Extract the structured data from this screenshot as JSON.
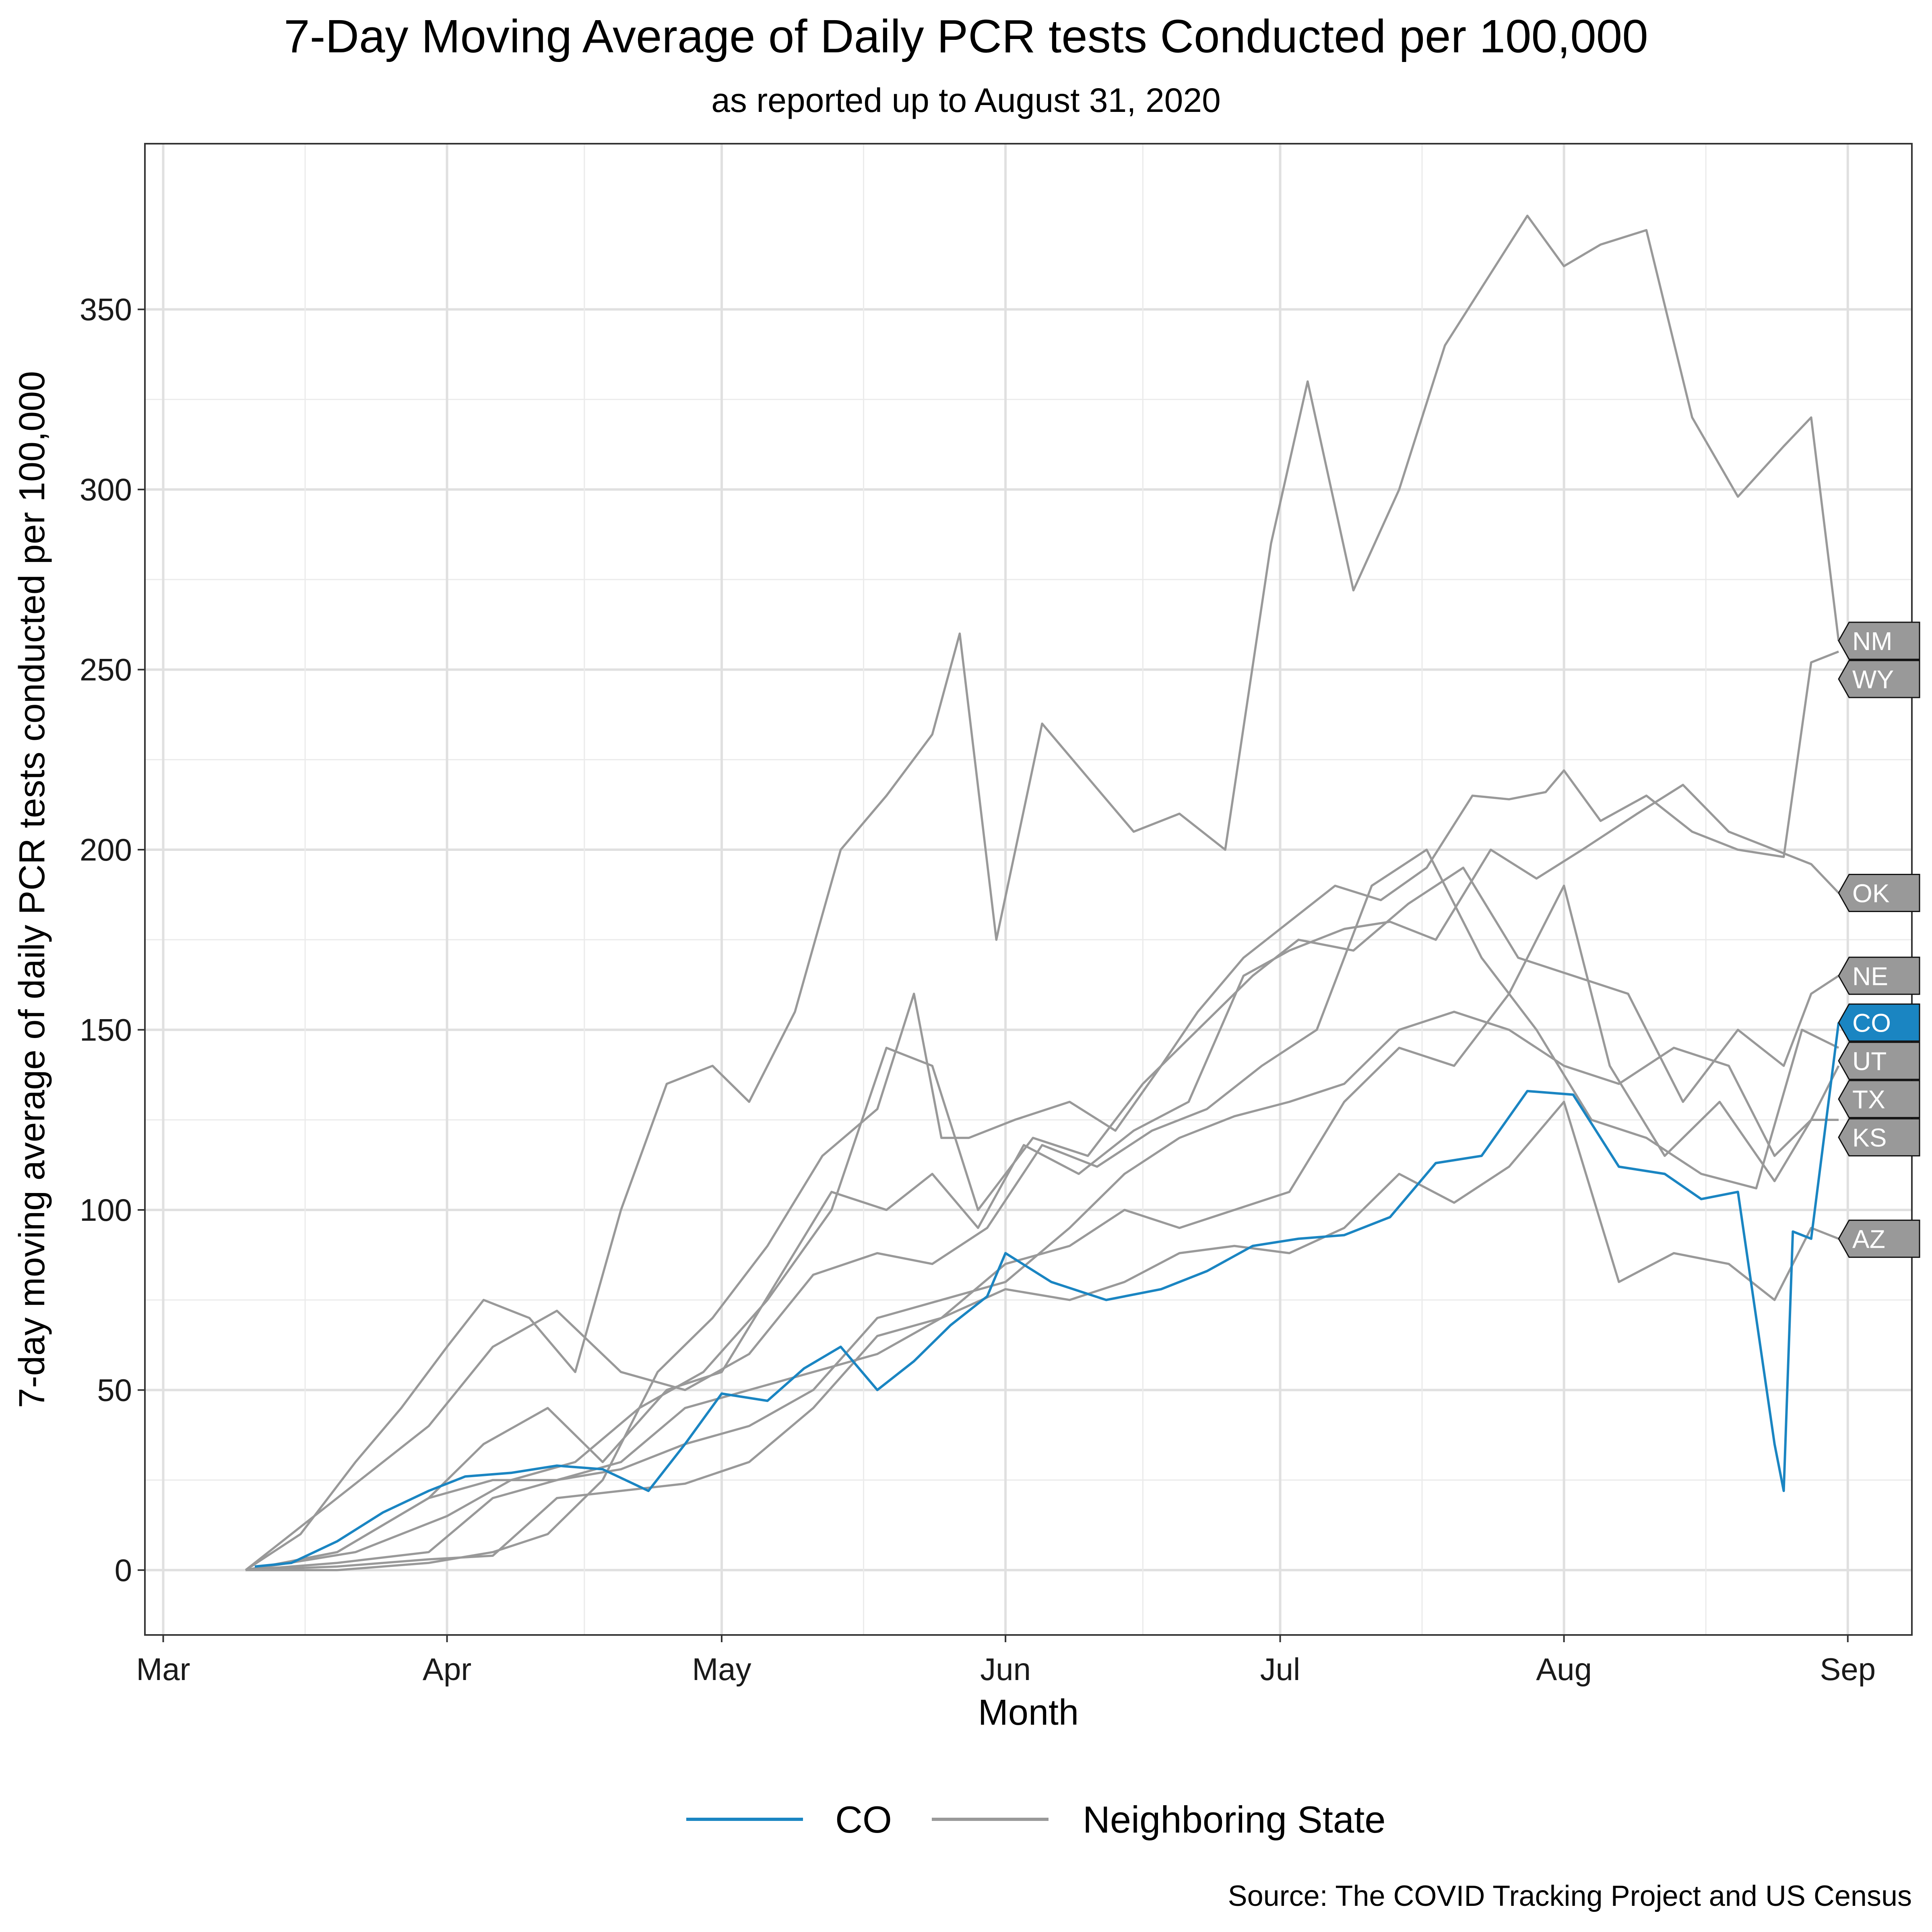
{
  "chart_data": {
    "type": "line",
    "title": "7-Day Moving Average of Daily PCR tests Conducted per 100,000",
    "subtitle": "as reported up to August 31, 2020",
    "xlabel": "Month",
    "ylabel": "7-day moving average of daily PCR tests conducted per 100,000",
    "caption": "Source: The COVID Tracking Project and US Census",
    "x_ticks": [
      {
        "label": "Mar",
        "date": "2020-03-01"
      },
      {
        "label": "Apr",
        "date": "2020-04-01"
      },
      {
        "label": "May",
        "date": "2020-05-01"
      },
      {
        "label": "Jun",
        "date": "2020-06-01"
      },
      {
        "label": "Jul",
        "date": "2020-07-01"
      },
      {
        "label": "Aug",
        "date": "2020-08-01"
      },
      {
        "label": "Sep",
        "date": "2020-09-01"
      }
    ],
    "xlim": [
      "2020-02-28",
      "2020-09-08"
    ],
    "y_ticks": [
      0,
      50,
      100,
      150,
      200,
      250,
      300,
      350
    ],
    "ylim": [
      -18,
      396
    ],
    "grid": true,
    "legend": {
      "position": "bottom",
      "entries": [
        {
          "label": "CO",
          "color": "#1a85c2"
        },
        {
          "label": "Neighboring State",
          "color": "#999999"
        }
      ]
    },
    "colors": {
      "highlight": "#1a85c2",
      "neighbor": "#999999"
    },
    "series": [
      {
        "name": "CO",
        "group": "CO",
        "color": "#1a85c2",
        "dates": [
          "2020-03-11",
          "2020-03-15",
          "2020-03-20",
          "2020-03-25",
          "2020-03-30",
          "2020-04-03",
          "2020-04-08",
          "2020-04-13",
          "2020-04-18",
          "2020-04-23",
          "2020-04-27",
          "2020-05-01",
          "2020-05-06",
          "2020-05-10",
          "2020-05-14",
          "2020-05-18",
          "2020-05-22",
          "2020-05-26",
          "2020-05-30",
          "2020-06-01",
          "2020-06-06",
          "2020-06-12",
          "2020-06-18",
          "2020-06-23",
          "2020-06-28",
          "2020-07-03",
          "2020-07-08",
          "2020-07-13",
          "2020-07-18",
          "2020-07-23",
          "2020-07-28",
          "2020-08-02",
          "2020-08-07",
          "2020-08-12",
          "2020-08-16",
          "2020-08-20",
          "2020-08-22",
          "2020-08-24",
          "2020-08-25",
          "2020-08-26",
          "2020-08-28",
          "2020-08-31"
        ],
        "values": [
          1,
          2,
          8,
          16,
          22,
          26,
          27,
          29,
          28,
          22,
          35,
          49,
          47,
          56,
          62,
          50,
          58,
          68,
          76,
          88,
          80,
          75,
          78,
          83,
          90,
          92,
          93,
          98,
          113,
          115,
          133,
          132,
          112,
          110,
          103,
          105,
          70,
          35,
          22,
          94,
          92,
          152
        ]
      },
      {
        "name": "NM",
        "group": "Neighboring State",
        "color": "#999999",
        "dates": [
          "2020-03-10",
          "2020-03-16",
          "2020-03-22",
          "2020-03-27",
          "2020-04-01",
          "2020-04-05",
          "2020-04-10",
          "2020-04-15",
          "2020-04-20",
          "2020-04-25",
          "2020-04-30",
          "2020-05-04",
          "2020-05-09",
          "2020-05-14",
          "2020-05-19",
          "2020-05-24",
          "2020-05-27",
          "2020-05-31",
          "2020-06-05",
          "2020-06-10",
          "2020-06-15",
          "2020-06-20",
          "2020-06-25",
          "2020-06-30",
          "2020-07-04",
          "2020-07-09",
          "2020-07-14",
          "2020-07-19",
          "2020-07-24",
          "2020-07-28",
          "2020-08-01",
          "2020-08-05",
          "2020-08-10",
          "2020-08-15",
          "2020-08-20",
          "2020-08-25",
          "2020-08-28",
          "2020-08-31"
        ],
        "values": [
          0,
          10,
          30,
          45,
          62,
          75,
          70,
          55,
          100,
          135,
          140,
          130,
          155,
          200,
          215,
          232,
          260,
          175,
          235,
          220,
          205,
          210,
          200,
          285,
          330,
          272,
          300,
          340,
          360,
          376,
          362,
          368,
          372,
          320,
          298,
          312,
          320,
          258
        ]
      },
      {
        "name": "WY",
        "group": "Neighboring State",
        "color": "#999999",
        "dates": [
          "2020-03-10",
          "2020-03-20",
          "2020-03-30",
          "2020-04-06",
          "2020-04-12",
          "2020-04-18",
          "2020-04-24",
          "2020-04-30",
          "2020-05-06",
          "2020-05-12",
          "2020-05-18",
          "2020-05-22",
          "2020-05-25",
          "2020-05-28",
          "2020-06-02",
          "2020-06-08",
          "2020-06-13",
          "2020-06-18",
          "2020-06-22",
          "2020-06-27",
          "2020-07-02",
          "2020-07-07",
          "2020-07-12",
          "2020-07-17",
          "2020-07-22",
          "2020-07-26",
          "2020-07-30",
          "2020-08-01",
          "2020-08-05",
          "2020-08-10",
          "2020-08-15",
          "2020-08-20",
          "2020-08-25",
          "2020-08-28",
          "2020-08-31"
        ],
        "values": [
          0,
          0,
          2,
          5,
          10,
          25,
          55,
          70,
          90,
          115,
          128,
          160,
          120,
          120,
          125,
          130,
          122,
          140,
          155,
          170,
          180,
          190,
          186,
          195,
          215,
          214,
          216,
          222,
          208,
          215,
          205,
          200,
          198,
          252,
          255
        ]
      },
      {
        "name": "OK",
        "group": "Neighboring State",
        "color": "#999999",
        "dates": [
          "2020-03-10",
          "2020-03-20",
          "2020-03-30",
          "2020-04-05",
          "2020-04-12",
          "2020-04-18",
          "2020-04-25",
          "2020-05-01",
          "2020-05-07",
          "2020-05-13",
          "2020-05-19",
          "2020-05-24",
          "2020-05-29",
          "2020-06-03",
          "2020-06-09",
          "2020-06-15",
          "2020-06-21",
          "2020-06-27",
          "2020-07-02",
          "2020-07-08",
          "2020-07-13",
          "2020-07-18",
          "2020-07-24",
          "2020-07-29",
          "2020-08-03",
          "2020-08-09",
          "2020-08-14",
          "2020-08-19",
          "2020-08-24",
          "2020-08-28",
          "2020-08-31"
        ],
        "values": [
          0,
          5,
          20,
          35,
          45,
          30,
          50,
          55,
          80,
          105,
          100,
          110,
          95,
          118,
          110,
          122,
          130,
          165,
          172,
          178,
          180,
          175,
          200,
          192,
          200,
          210,
          218,
          205,
          200,
          196,
          188
        ]
      },
      {
        "name": "NE",
        "group": "Neighboring State",
        "color": "#999999",
        "dates": [
          "2020-03-10",
          "2020-03-22",
          "2020-04-01",
          "2020-04-08",
          "2020-04-15",
          "2020-04-22",
          "2020-04-29",
          "2020-05-06",
          "2020-05-13",
          "2020-05-19",
          "2020-05-24",
          "2020-05-29",
          "2020-06-04",
          "2020-06-10",
          "2020-06-16",
          "2020-06-22",
          "2020-06-28",
          "2020-07-03",
          "2020-07-09",
          "2020-07-15",
          "2020-07-21",
          "2020-07-27",
          "2020-08-02",
          "2020-08-08",
          "2020-08-14",
          "2020-08-20",
          "2020-08-25",
          "2020-08-28",
          "2020-08-31"
        ],
        "values": [
          0,
          5,
          15,
          25,
          30,
          45,
          55,
          75,
          100,
          145,
          140,
          100,
          120,
          115,
          135,
          150,
          165,
          175,
          172,
          185,
          195,
          170,
          165,
          160,
          130,
          150,
          140,
          160,
          165
        ]
      },
      {
        "name": "UT",
        "group": "Neighboring State",
        "color": "#999999",
        "dates": [
          "2020-03-10",
          "2020-03-20",
          "2020-03-30",
          "2020-04-06",
          "2020-04-13",
          "2020-04-20",
          "2020-04-27",
          "2020-05-04",
          "2020-05-11",
          "2020-05-18",
          "2020-05-24",
          "2020-05-30",
          "2020-06-05",
          "2020-06-11",
          "2020-06-17",
          "2020-06-23",
          "2020-06-29",
          "2020-07-05",
          "2020-07-11",
          "2020-07-17",
          "2020-07-23",
          "2020-07-29",
          "2020-08-04",
          "2020-08-10",
          "2020-08-16",
          "2020-08-22",
          "2020-08-27",
          "2020-08-31"
        ],
        "values": [
          0,
          20,
          40,
          62,
          72,
          55,
          50,
          60,
          82,
          88,
          85,
          95,
          118,
          112,
          122,
          128,
          140,
          150,
          190,
          200,
          170,
          150,
          125,
          120,
          110,
          106,
          150,
          145
        ]
      },
      {
        "name": "TX",
        "group": "Neighboring State",
        "color": "#999999",
        "dates": [
          "2020-03-10",
          "2020-03-20",
          "2020-03-30",
          "2020-04-06",
          "2020-04-13",
          "2020-04-20",
          "2020-04-27",
          "2020-05-04",
          "2020-05-11",
          "2020-05-18",
          "2020-05-25",
          "2020-06-01",
          "2020-06-08",
          "2020-06-14",
          "2020-06-20",
          "2020-06-26",
          "2020-07-02",
          "2020-07-08",
          "2020-07-14",
          "2020-07-20",
          "2020-07-26",
          "2020-08-01",
          "2020-08-06",
          "2020-08-12",
          "2020-08-18",
          "2020-08-24",
          "2020-08-28",
          "2020-08-31"
        ],
        "values": [
          0,
          5,
          20,
          25,
          25,
          30,
          45,
          50,
          55,
          60,
          70,
          85,
          90,
          100,
          95,
          100,
          105,
          130,
          145,
          140,
          160,
          190,
          140,
          115,
          130,
          108,
          125,
          140
        ]
      },
      {
        "name": "KS",
        "group": "Neighboring State",
        "color": "#999999",
        "dates": [
          "2020-03-10",
          "2020-03-20",
          "2020-03-30",
          "2020-04-06",
          "2020-04-13",
          "2020-04-20",
          "2020-04-27",
          "2020-05-04",
          "2020-05-11",
          "2020-05-18",
          "2020-05-25",
          "2020-06-01",
          "2020-06-08",
          "2020-06-14",
          "2020-06-20",
          "2020-06-26",
          "2020-07-02",
          "2020-07-08",
          "2020-07-14",
          "2020-07-20",
          "2020-07-26",
          "2020-08-01",
          "2020-08-07",
          "2020-08-13",
          "2020-08-19",
          "2020-08-24",
          "2020-08-28",
          "2020-08-31"
        ],
        "values": [
          0,
          2,
          5,
          20,
          25,
          28,
          35,
          40,
          50,
          70,
          75,
          80,
          95,
          110,
          120,
          126,
          130,
          135,
          150,
          155,
          150,
          140,
          135,
          145,
          140,
          115,
          125,
          125
        ]
      },
      {
        "name": "AZ",
        "group": "Neighboring State",
        "color": "#999999",
        "dates": [
          "2020-03-10",
          "2020-03-20",
          "2020-03-30",
          "2020-04-06",
          "2020-04-13",
          "2020-04-20",
          "2020-04-27",
          "2020-05-04",
          "2020-05-11",
          "2020-05-18",
          "2020-05-25",
          "2020-06-01",
          "2020-06-08",
          "2020-06-14",
          "2020-06-20",
          "2020-06-26",
          "2020-07-02",
          "2020-07-08",
          "2020-07-14",
          "2020-07-20",
          "2020-07-26",
          "2020-08-01",
          "2020-08-07",
          "2020-08-13",
          "2020-08-19",
          "2020-08-24",
          "2020-08-28",
          "2020-08-31"
        ],
        "values": [
          0,
          1,
          3,
          4,
          20,
          22,
          24,
          30,
          45,
          65,
          70,
          78,
          75,
          80,
          88,
          90,
          88,
          95,
          110,
          102,
          112,
          130,
          80,
          88,
          85,
          75,
          95,
          92
        ]
      }
    ]
  }
}
